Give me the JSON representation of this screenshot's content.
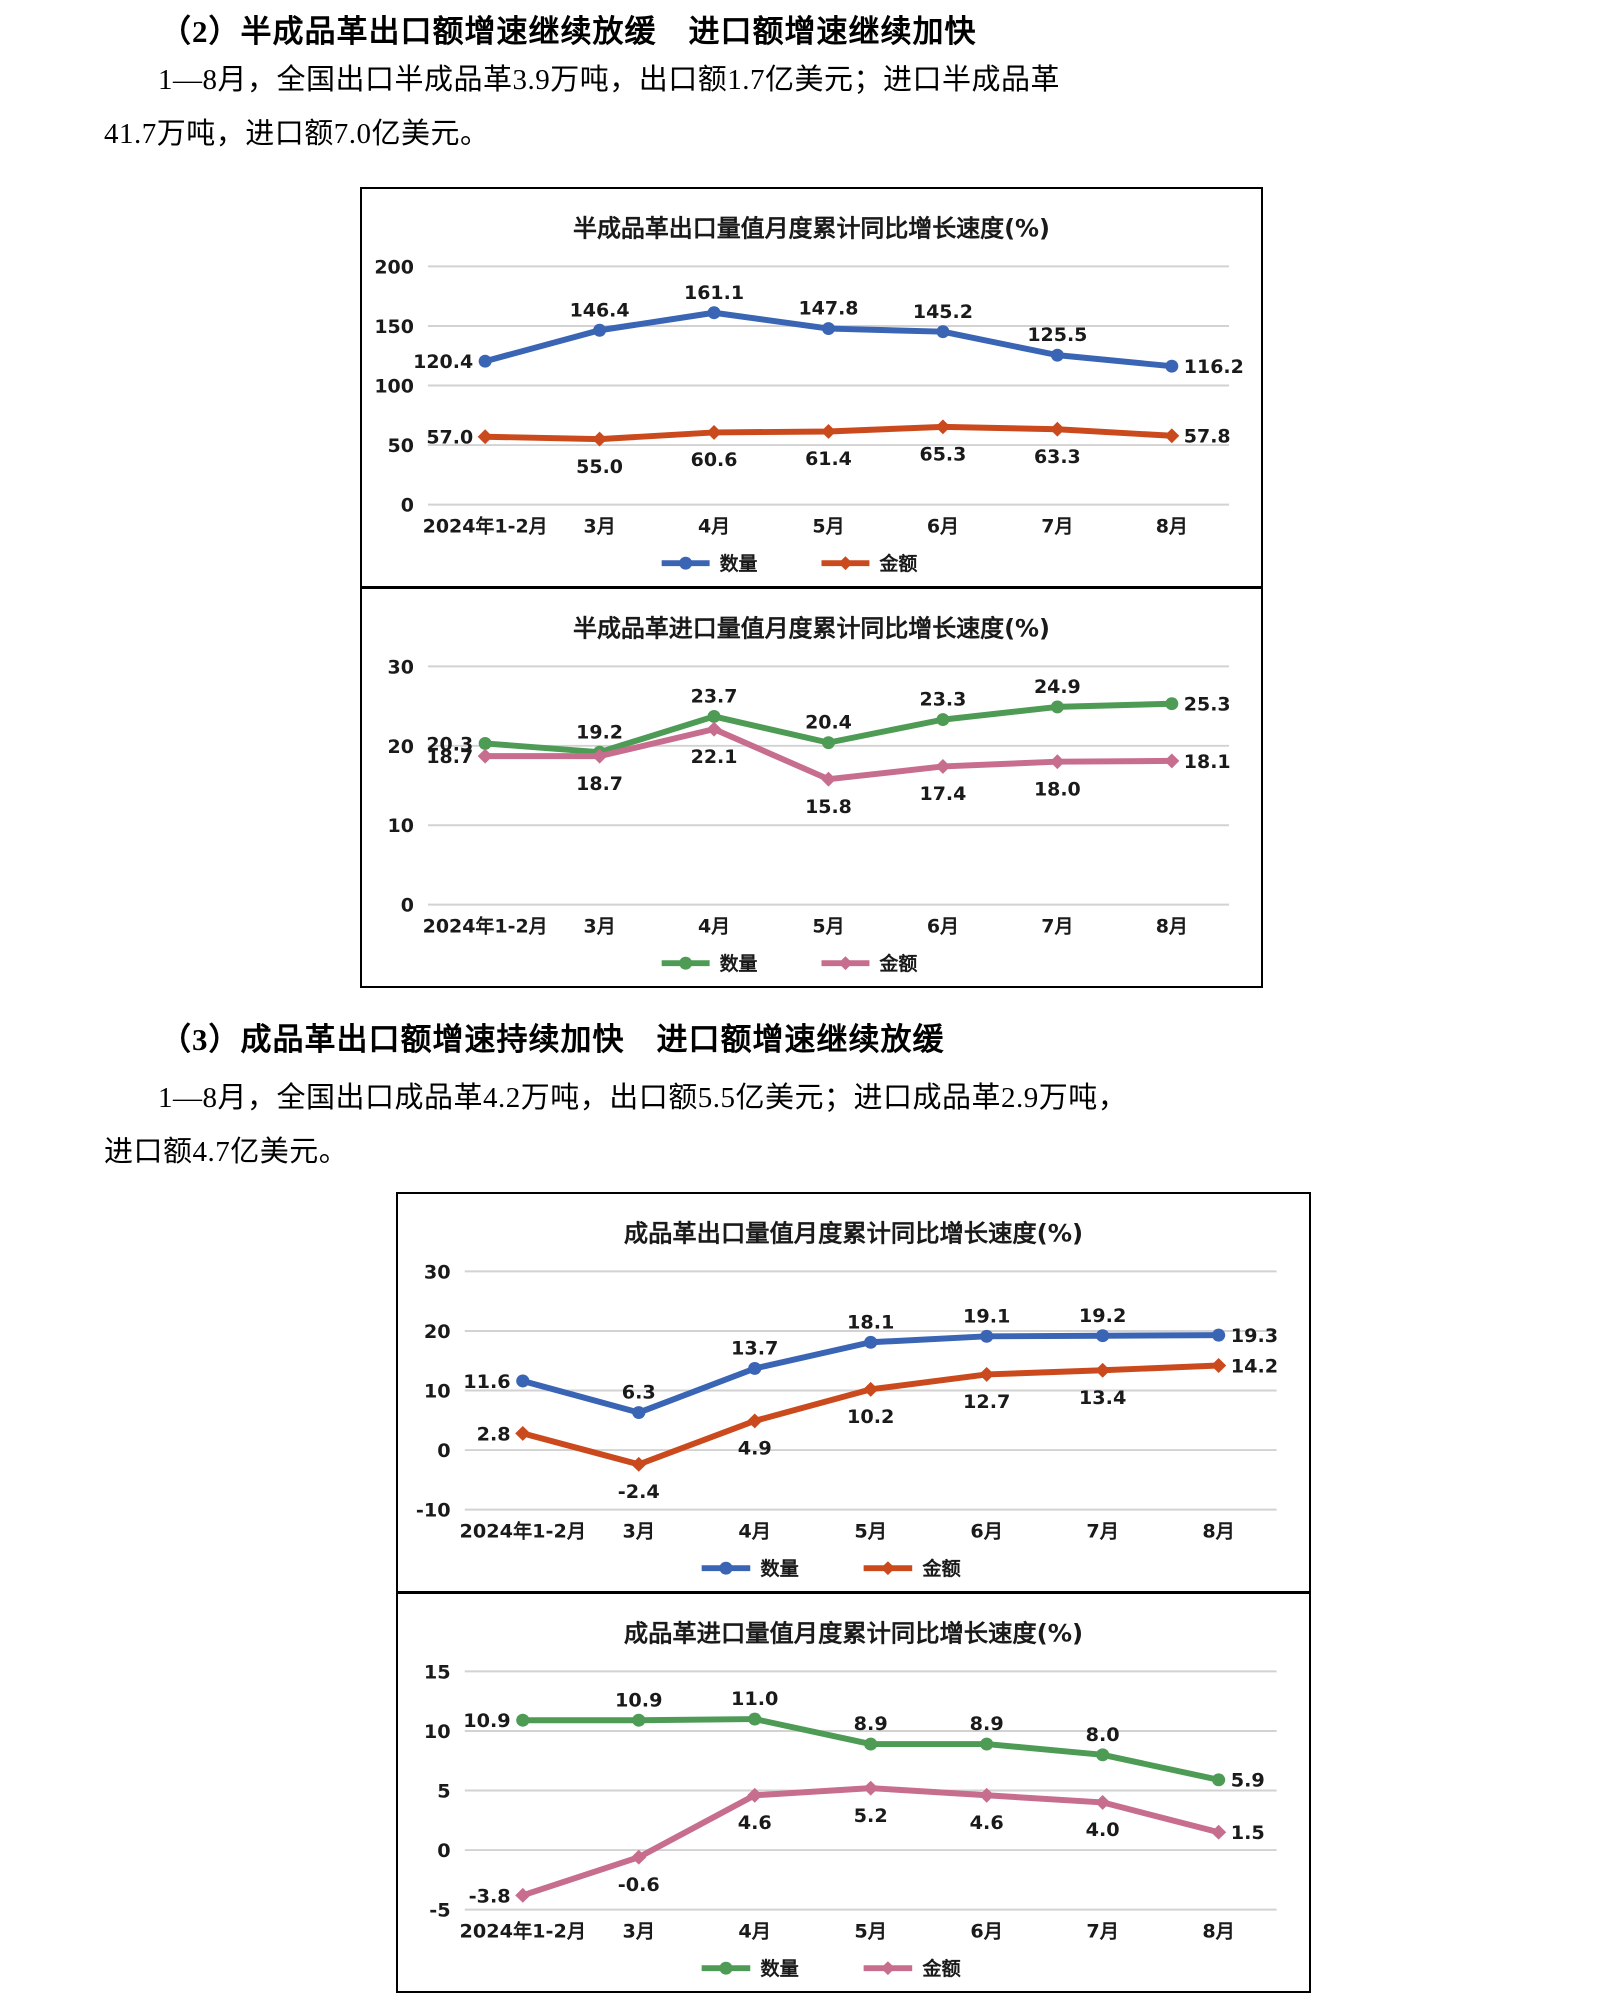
{
  "document": {
    "sections": [
      {
        "heading": "（2）半成品革出口额增速继续放缓　进口额增速继续加快",
        "paragraph_lines": [
          "1—8月，全国出口半成品革3.9万吨，出口额1.7亿美元；进口半成品革",
          "41.7万吨，进口额7.0亿美元。"
        ]
      },
      {
        "heading": "（3）成品革出口额增速持续加快　进口额增速继续放缓",
        "paragraph_lines": [
          "1—8月，全国出口成品革4.2万吨，出口额5.5亿美元；进口成品革2.9万吨，",
          "进口额4.7亿美元。"
        ]
      }
    ]
  },
  "chart_data": [
    {
      "type": "line",
      "title": "半成品革出口量值月度累计同比增长速度(%)",
      "categories": [
        "2024年1-2月",
        "3月",
        "4月",
        "5月",
        "6月",
        "7月",
        "8月"
      ],
      "series": [
        {
          "name": "数量",
          "color": "#3A64B4",
          "marker": "circle",
          "values": [
            120.4,
            146.4,
            161.1,
            147.8,
            145.2,
            125.5,
            116.2
          ]
        },
        {
          "name": "金额",
          "color": "#CB4A1D",
          "marker": "diamond",
          "values": [
            57.0,
            55.0,
            60.6,
            61.4,
            65.3,
            63.3,
            57.8
          ]
        }
      ],
      "ylim": [
        0,
        200
      ],
      "ystep": 50,
      "grid": true,
      "legend_position": "bottom"
    },
    {
      "type": "line",
      "title": "半成品革进口量值月度累计同比增长速度(%)",
      "categories": [
        "2024年1-2月",
        "3月",
        "4月",
        "5月",
        "6月",
        "7月",
        "8月"
      ],
      "series": [
        {
          "name": "数量",
          "color": "#4E9B55",
          "marker": "circle",
          "values": [
            20.3,
            19.2,
            23.7,
            20.4,
            23.3,
            24.9,
            25.3
          ]
        },
        {
          "name": "金额",
          "color": "#C76D8D",
          "marker": "diamond",
          "values": [
            18.7,
            18.7,
            22.1,
            15.8,
            17.4,
            18.0,
            18.1
          ]
        }
      ],
      "ylim": [
        0,
        30
      ],
      "ystep": 10,
      "grid": true,
      "legend_position": "bottom"
    },
    {
      "type": "line",
      "title": "成品革出口量值月度累计同比增长速度(%)",
      "categories": [
        "2024年1-2月",
        "3月",
        "4月",
        "5月",
        "6月",
        "7月",
        "8月"
      ],
      "series": [
        {
          "name": "数量",
          "color": "#3A64B4",
          "marker": "circle",
          "values": [
            11.6,
            6.3,
            13.7,
            18.1,
            19.1,
            19.2,
            19.3
          ]
        },
        {
          "name": "金额",
          "color": "#CB4A1D",
          "marker": "diamond",
          "values": [
            2.8,
            -2.4,
            4.9,
            10.2,
            12.7,
            13.4,
            14.2
          ]
        }
      ],
      "ylim": [
        -10,
        30
      ],
      "ystep": 10,
      "grid": true,
      "legend_position": "bottom"
    },
    {
      "type": "line",
      "title": "成品革进口量值月度累计同比增长速度(%)",
      "categories": [
        "2024年1-2月",
        "3月",
        "4月",
        "5月",
        "6月",
        "7月",
        "8月"
      ],
      "series": [
        {
          "name": "数量",
          "color": "#4E9B55",
          "marker": "circle",
          "values": [
            10.9,
            10.9,
            11.0,
            8.9,
            8.9,
            8.0,
            5.9
          ]
        },
        {
          "name": "金额",
          "color": "#C76D8D",
          "marker": "diamond",
          "values": [
            -3.8,
            -0.6,
            4.6,
            5.2,
            4.6,
            4.0,
            1.5
          ]
        }
      ],
      "ylim": [
        -5,
        15
      ],
      "ystep": 5,
      "grid": true,
      "legend_position": "bottom"
    }
  ]
}
